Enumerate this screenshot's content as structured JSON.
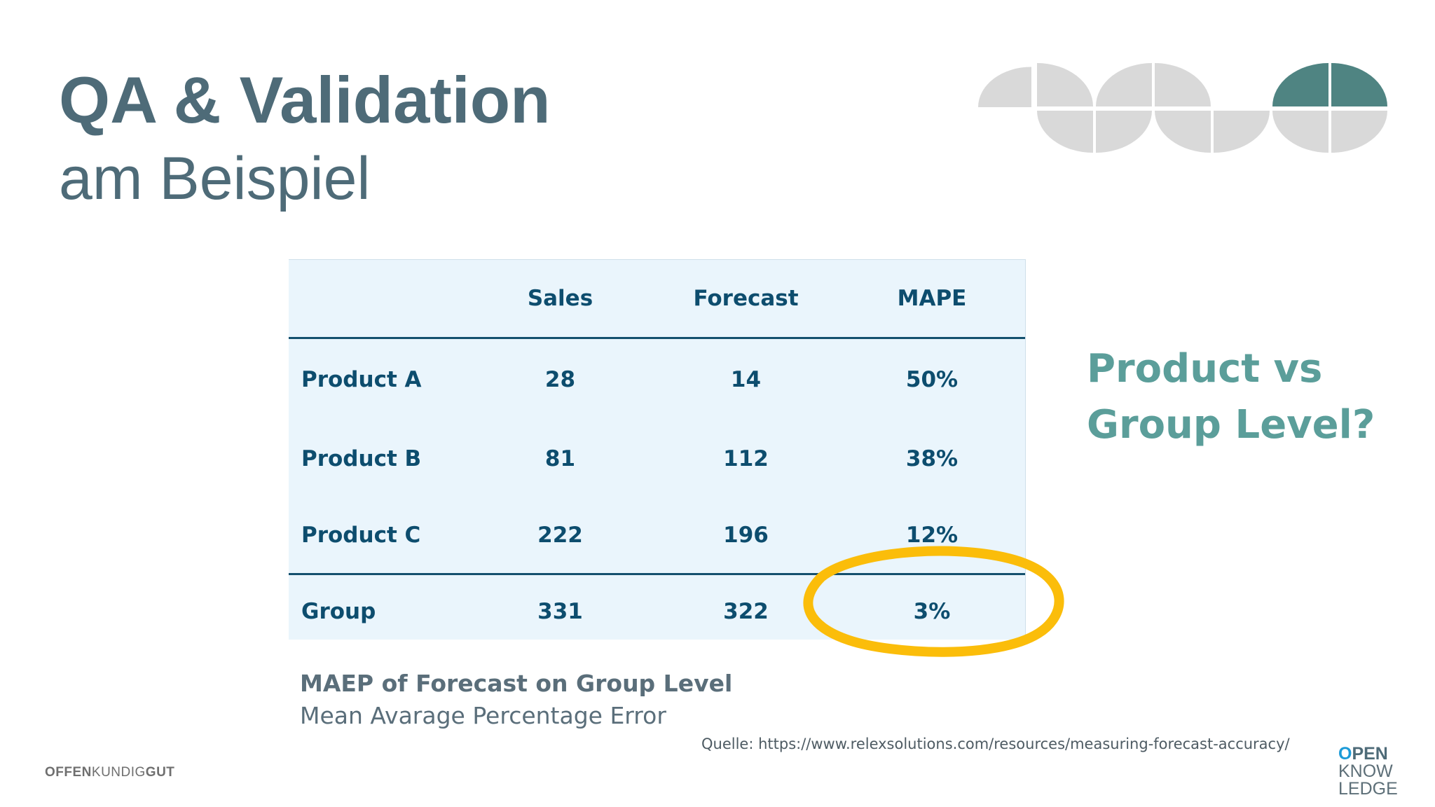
{
  "slide": {
    "title": "QA & Validation",
    "subtitle": "am Beispiel"
  },
  "table": {
    "headers": [
      "",
      "Sales",
      "Forecast",
      "MAPE"
    ],
    "rows": [
      {
        "label": "Product A",
        "sales": "28",
        "forecast": "14",
        "mape": "50%"
      },
      {
        "label": "Product B",
        "sales": "81",
        "forecast": "112",
        "mape": "38%"
      },
      {
        "label": "Product C",
        "sales": "222",
        "forecast": "196",
        "mape": "12%"
      },
      {
        "label": "Group",
        "sales": "331",
        "forecast": "322",
        "mape": "3%"
      }
    ]
  },
  "side_question": {
    "line1": "Product vs",
    "line2": "Group Level?"
  },
  "caption": {
    "title": "MAEP of Forecast on Group Level",
    "subtitle": "Mean Avarage Percentage Error"
  },
  "source": "Quelle: https://www.relexsolutions.com/resources/measuring-forecast-accuracy/",
  "branding": {
    "left_part1": "OFFEN",
    "left_part2": "KUNDIG",
    "left_part3": "GUT",
    "right_line1_o": "O",
    "right_line1_rest": "PEN",
    "right_line2": "KNOW",
    "right_line3": "LEDGE"
  },
  "colors": {
    "title": "#4e6b78",
    "accent_teal": "#5b9e9a",
    "table_background": "#eaf5fc",
    "table_text": "#0d4d6e",
    "highlight_circle": "#fbbd0a",
    "decor_grey": "#d9d9d9",
    "decor_dark_teal": "#4f8482"
  }
}
